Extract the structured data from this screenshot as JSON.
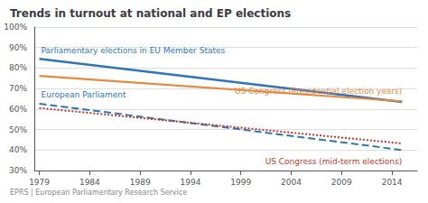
{
  "chart_data": {
    "type": "line",
    "title": "Trends in turnout at national and EP elections",
    "footer": "EPRS | European Parliamentary Research Service",
    "x": [
      1979,
      2015
    ],
    "xlim": [
      1978.5,
      2016.5
    ],
    "xticks": [
      1979,
      1984,
      1989,
      1994,
      1999,
      2004,
      2009,
      2014
    ],
    "ylim": [
      0.3,
      1
    ],
    "yticks": [
      {
        "value": 0.3,
        "label": "30%"
      },
      {
        "value": 0.4,
        "label": "40%"
      },
      {
        "value": 0.5,
        "label": "50%"
      },
      {
        "value": 0.6,
        "label": "60%"
      },
      {
        "value": 0.7,
        "label": "70%"
      },
      {
        "value": 0.8,
        "label": "80%"
      },
      {
        "value": 0.9,
        "label": "90%"
      },
      {
        "value": 1,
        "label": "100%"
      }
    ],
    "grid": true,
    "series": [
      {
        "name": "Parliamentary elections in EU Member States",
        "color": "#2e75b6",
        "line_style": "solid",
        "values": [
          0.845,
          0.635
        ]
      },
      {
        "name": "US Congress (Presidential election years)",
        "color": "#e8883a",
        "line_style": "solid",
        "values": [
          0.762,
          0.638
        ]
      },
      {
        "name": "European Parliament",
        "color": "#2e75b6",
        "line_style": "dashed",
        "values": [
          0.626,
          0.4
        ]
      },
      {
        "name": "US Congress (mid-term elections)",
        "color": "#c0392b",
        "line_style": "dotted",
        "values": [
          0.605,
          0.432
        ]
      }
    ]
  }
}
